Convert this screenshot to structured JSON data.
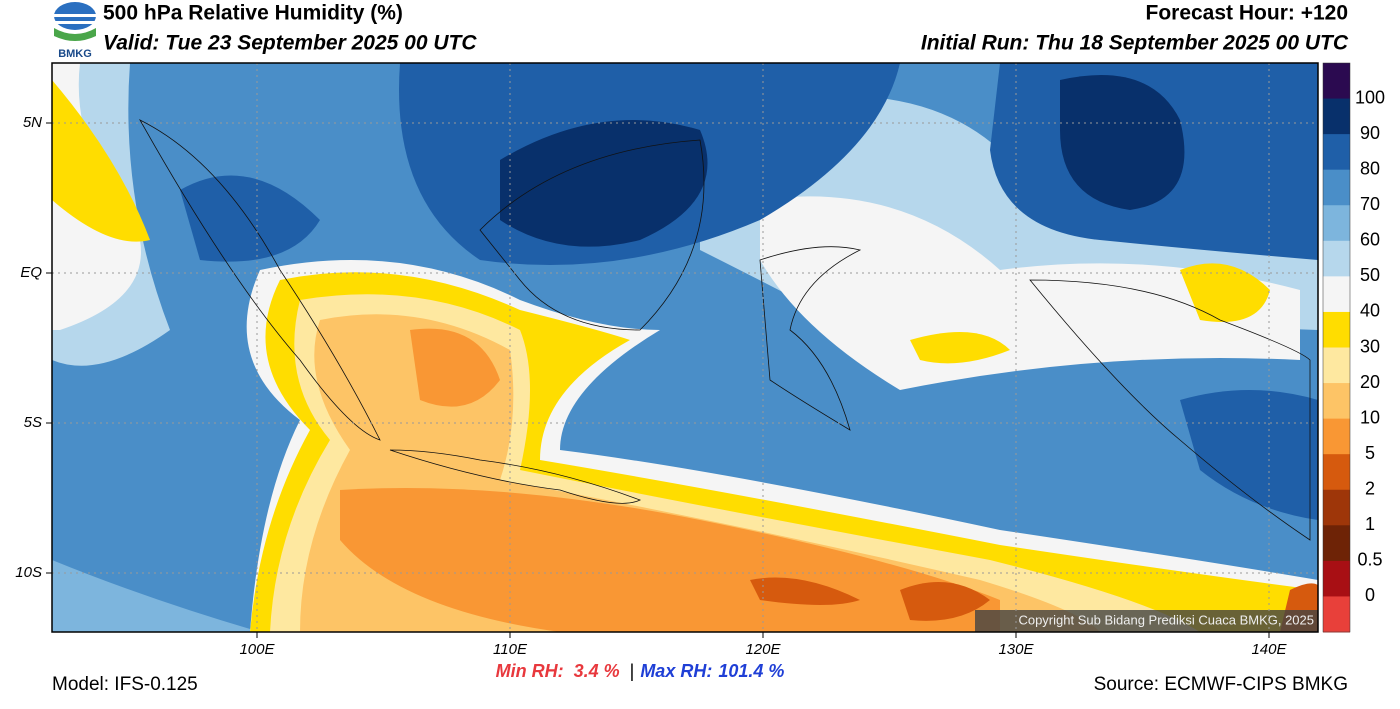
{
  "header": {
    "title": "500 hPa Relative Humidity (%)",
    "valid": "Valid: Tue 23 September 2025 00 UTC",
    "forecast_hour": "Forecast Hour: +120",
    "initial_run": "Initial Run: Thu 18 September 2025 00 UTC",
    "logo": "BMKG"
  },
  "map": {
    "lat_labels": [
      "5N",
      "EQ",
      "5S",
      "10S"
    ],
    "lon_labels": [
      "100E",
      "110E",
      "120E",
      "130E",
      "140E"
    ],
    "copyright": "Copyright Sub Bidang Prediksi Cuaca BMKG, 2025"
  },
  "colorbar": {
    "labels": [
      "100",
      "90",
      "80",
      "70",
      "60",
      "50",
      "40",
      "30",
      "20",
      "10",
      "5",
      "2",
      "1",
      "0.5",
      "0"
    ],
    "colors": [
      "#2b0a50",
      "#08306b",
      "#1f5fa8",
      "#4a8ec8",
      "#7db5dd",
      "#b6d7ec",
      "#f5f5f5",
      "#ffdd00",
      "#fee8a0",
      "#fdc466",
      "#f99734",
      "#d65a0e",
      "#9e3609",
      "#6e2306",
      "#a80f14",
      "#e8403a"
    ]
  },
  "footer": {
    "model": "Model: IFS-0.125",
    "min_label": "Min RH:",
    "min_value": "3.4 %",
    "separator": "|",
    "max_label": "Max RH:",
    "max_value": "101.4 %",
    "source": "Source: ECMWF-CIPS BMKG"
  }
}
